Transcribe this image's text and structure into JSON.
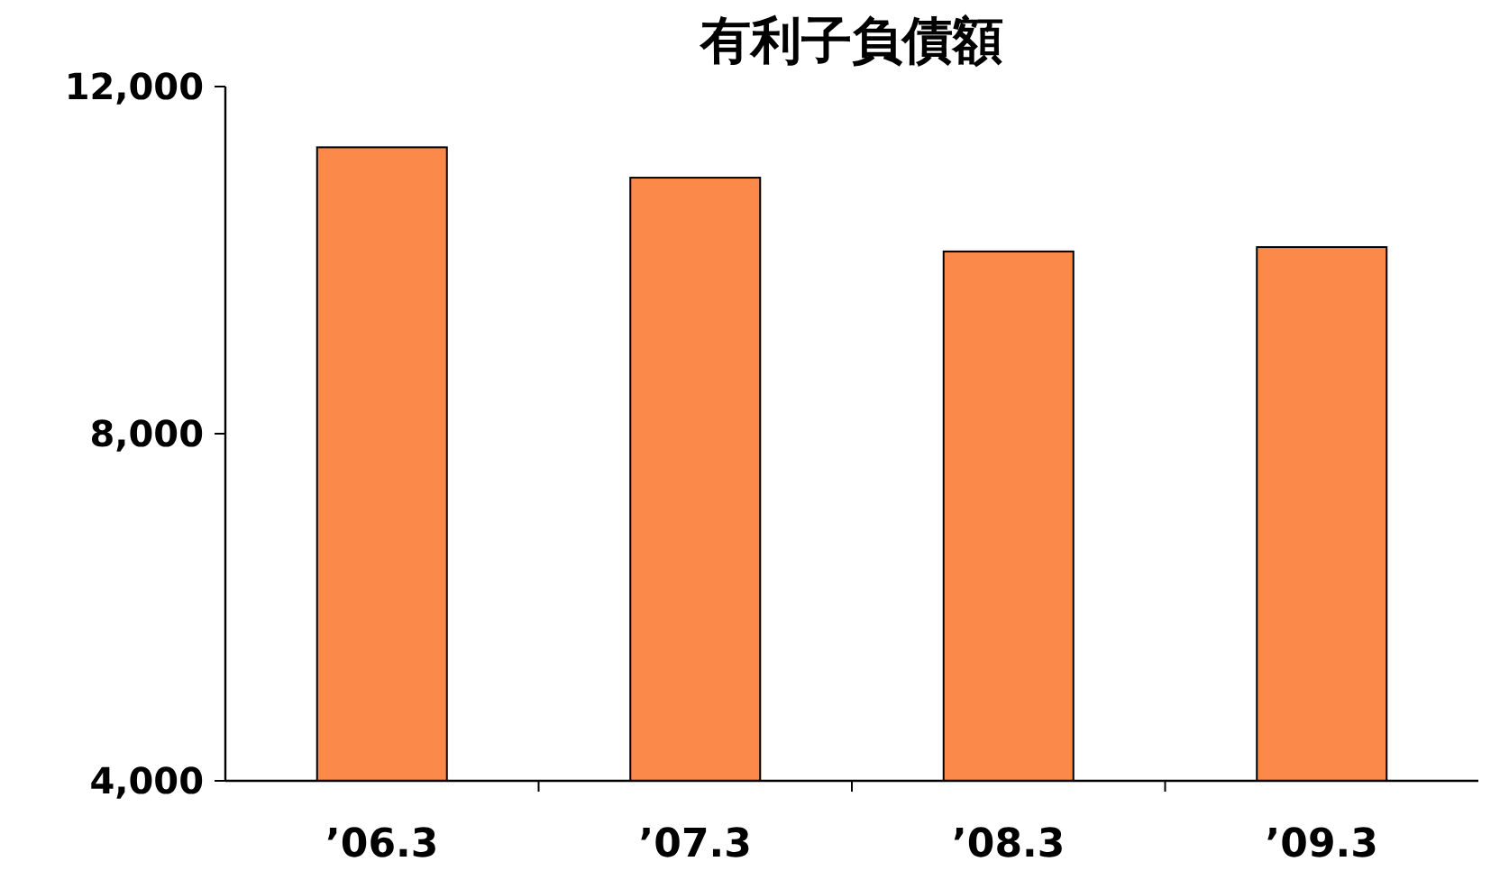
{
  "chart_data": {
    "type": "bar",
    "title": "有利子負債額",
    "categories": [
      "’06.3",
      "’07.3",
      "’08.3",
      "’09.3"
    ],
    "values": [
      11300,
      10950,
      10100,
      10150
    ],
    "color": "#fb8a4a",
    "ylim": [
      4000,
      12000
    ],
    "yticks": [
      {
        "value": 4000,
        "label": "4,000"
      },
      {
        "value": 8000,
        "label": "8,000"
      },
      {
        "value": 12000,
        "label": "12,000"
      }
    ],
    "grid": false
  }
}
